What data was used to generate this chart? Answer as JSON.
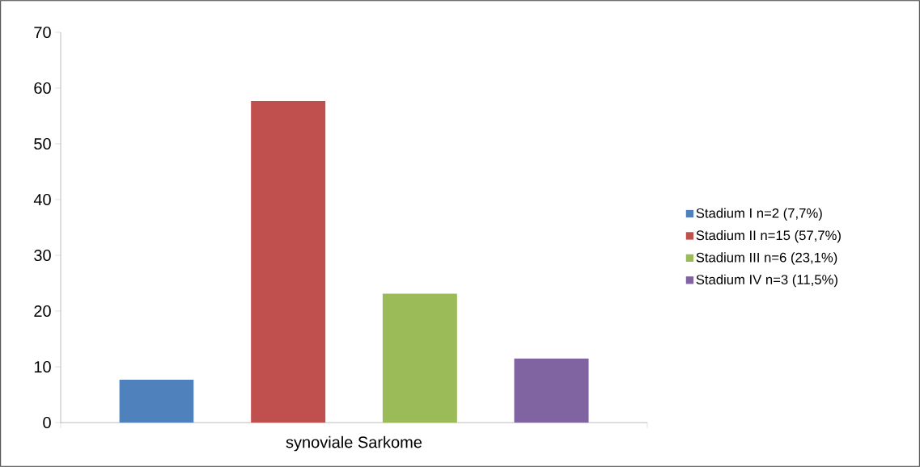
{
  "chart_data": {
    "type": "bar",
    "categories": [
      "synoviale Sarkome"
    ],
    "series": [
      {
        "name": "Stadium I n=2 (7,7%)",
        "color": "#4f81bd",
        "values": [
          7.7
        ]
      },
      {
        "name": "Stadium II n=15 (57,7%)",
        "color": "#c0504d",
        "values": [
          57.7
        ]
      },
      {
        "name": "Stadium III n=6 (23,1%)",
        "color": "#9bbb59",
        "values": [
          23.1
        ]
      },
      {
        "name": "Stadium IV n=3 (11,5%)",
        "color": "#8064a2",
        "values": [
          11.5
        ]
      }
    ],
    "ylim": [
      0,
      70
    ],
    "yticks": [
      0,
      10,
      20,
      30,
      40,
      50,
      60,
      70
    ],
    "legend": "right"
  }
}
